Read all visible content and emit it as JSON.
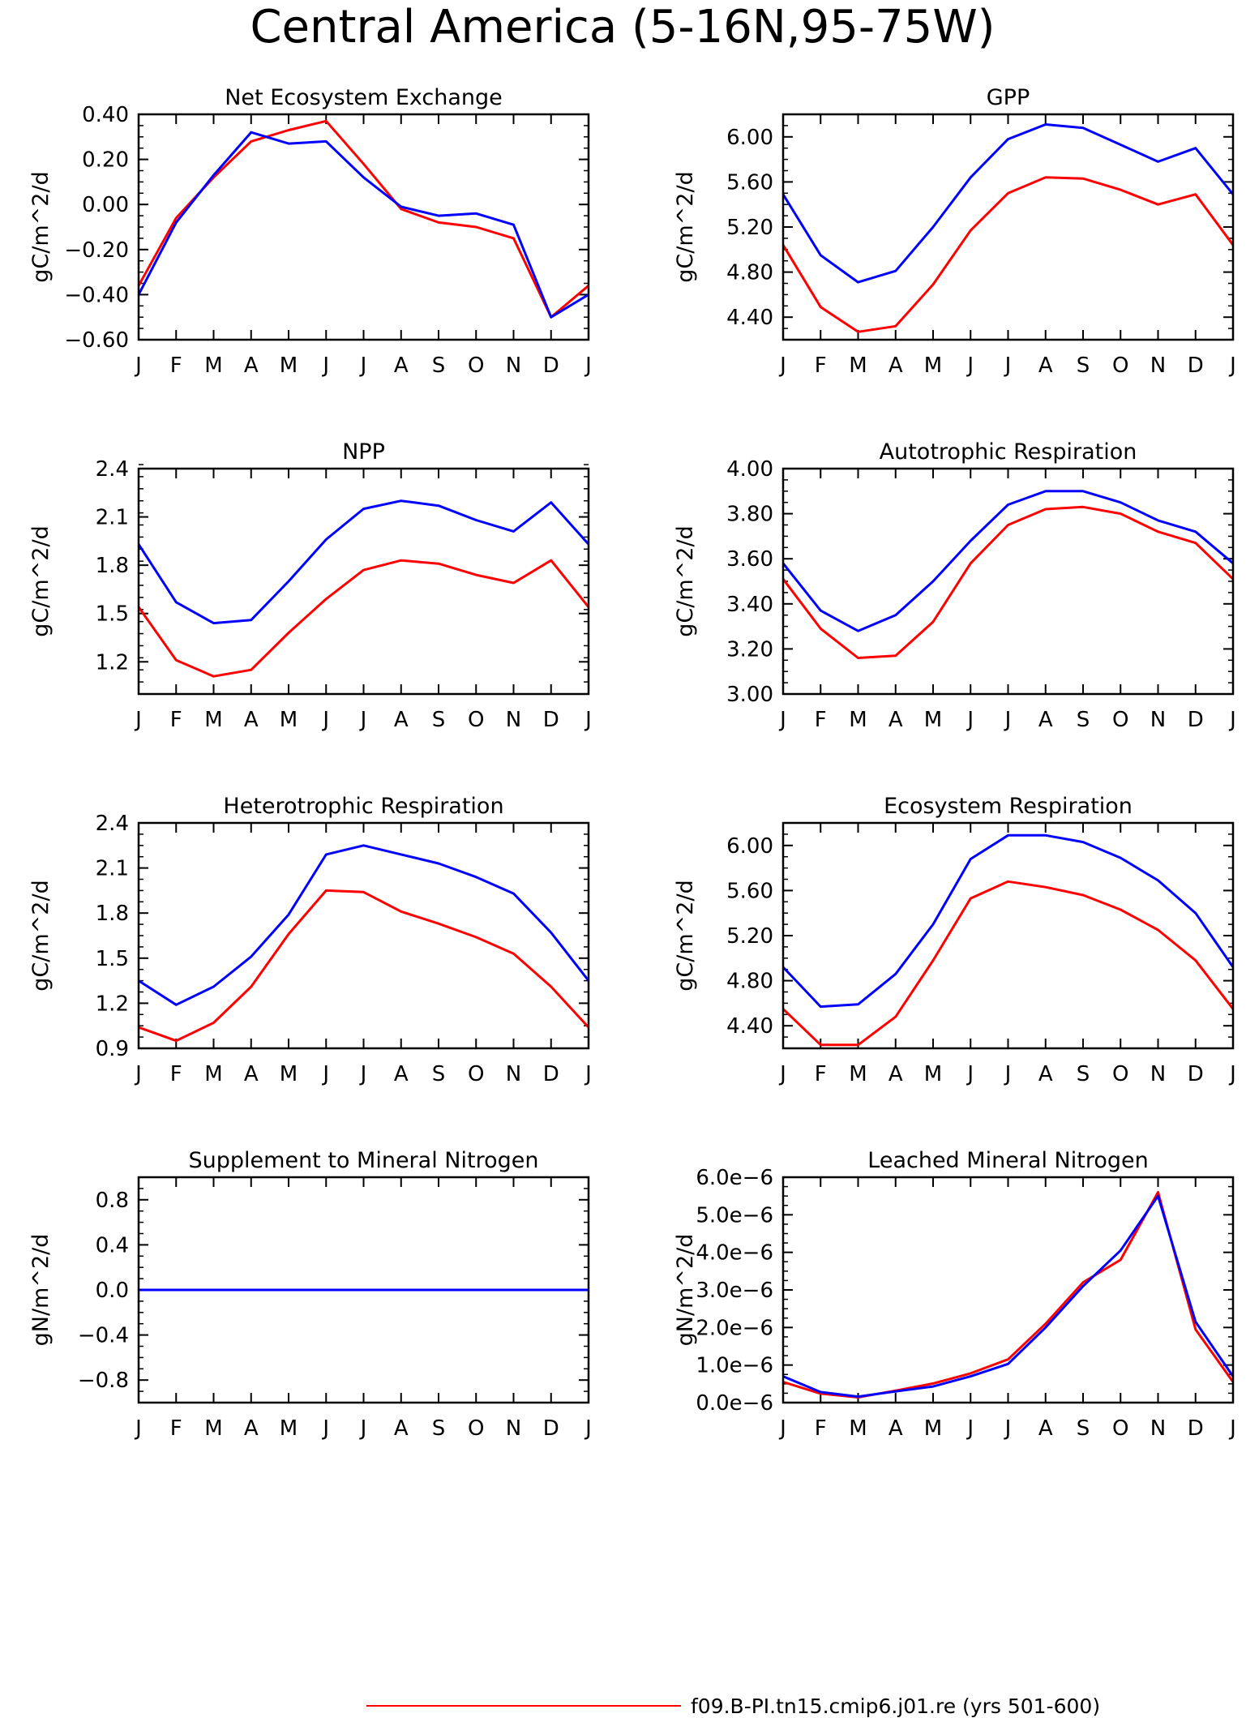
{
  "figure_title": "Central America (5-16N,95-75W)",
  "legend": [
    {
      "label": "f09.B-PI.tn15.cmip6.j01.re (yrs 501-600)",
      "color": "#ff0000"
    }
  ],
  "months": [
    "J",
    "F",
    "M",
    "A",
    "M",
    "J",
    "J",
    "A",
    "S",
    "O",
    "N",
    "D",
    "J"
  ],
  "colors": {
    "red": "#ff0000",
    "blue": "#0000ff"
  },
  "chart_data": [
    {
      "type": "line",
      "title": "Net Ecosystem Exchange",
      "ylabel": "gC/m^2/d",
      "ylim": [
        -0.6,
        0.4
      ],
      "yticks": [
        -0.6,
        -0.4,
        -0.2,
        0.0,
        0.2,
        0.4
      ],
      "yticklabels": [
        "-0.60",
        "-0.40",
        "-0.20",
        "0.00",
        "0.20",
        "0.40"
      ],
      "yminor": 0.05,
      "series": [
        {
          "color": "red",
          "values": [
            -0.36,
            -0.06,
            0.12,
            0.28,
            0.33,
            0.37,
            0.18,
            -0.02,
            -0.08,
            -0.1,
            -0.15,
            -0.5,
            -0.36
          ]
        },
        {
          "color": "blue",
          "values": [
            -0.4,
            -0.08,
            0.13,
            0.32,
            0.27,
            0.28,
            0.12,
            -0.01,
            -0.05,
            -0.04,
            -0.09,
            -0.5,
            -0.4
          ]
        }
      ]
    },
    {
      "type": "line",
      "title": "GPP",
      "ylabel": "gC/m^2/d",
      "ylim": [
        4.2,
        6.2
      ],
      "yticks": [
        4.4,
        4.8,
        5.2,
        5.6,
        6.0
      ],
      "yticklabels": [
        "4.40",
        "4.80",
        "5.20",
        "5.60",
        "6.00"
      ],
      "yminor": 0.1,
      "series": [
        {
          "color": "red",
          "values": [
            5.04,
            4.49,
            4.27,
            4.32,
            4.69,
            5.17,
            5.5,
            5.64,
            5.63,
            5.53,
            5.4,
            5.49,
            5.04
          ]
        },
        {
          "color": "blue",
          "values": [
            5.49,
            4.95,
            4.71,
            4.81,
            5.2,
            5.64,
            5.98,
            6.11,
            6.08,
            5.93,
            5.78,
            5.9,
            5.49
          ]
        }
      ]
    },
    {
      "type": "line",
      "title": "NPP",
      "ylabel": "gC/m^2/d",
      "ylim": [
        1.0,
        2.4
      ],
      "yticks": [
        1.2,
        1.5,
        1.8,
        2.1,
        2.4
      ],
      "yticklabels": [
        "1.2",
        "1.5",
        "1.8",
        "2.1",
        "2.4"
      ],
      "yminor": 0.075,
      "series": [
        {
          "color": "red",
          "values": [
            1.54,
            1.21,
            1.11,
            1.15,
            1.38,
            1.59,
            1.77,
            1.83,
            1.81,
            1.74,
            1.69,
            1.83,
            1.54
          ]
        },
        {
          "color": "blue",
          "values": [
            1.93,
            1.57,
            1.44,
            1.46,
            1.7,
            1.96,
            2.15,
            2.2,
            2.17,
            2.08,
            2.01,
            2.19,
            1.93
          ]
        }
      ]
    },
    {
      "type": "line",
      "title": "Autotrophic Respiration",
      "ylabel": "gC/m^2/d",
      "ylim": [
        3.0,
        4.0
      ],
      "yticks": [
        3.0,
        3.2,
        3.4,
        3.6,
        3.8,
        4.0
      ],
      "yticklabels": [
        "3.00",
        "3.20",
        "3.40",
        "3.60",
        "3.80",
        "4.00"
      ],
      "yminor": 0.05,
      "series": [
        {
          "color": "red",
          "values": [
            3.51,
            3.29,
            3.16,
            3.17,
            3.32,
            3.58,
            3.75,
            3.82,
            3.83,
            3.8,
            3.72,
            3.67,
            3.51
          ]
        },
        {
          "color": "blue",
          "values": [
            3.58,
            3.37,
            3.28,
            3.35,
            3.5,
            3.68,
            3.84,
            3.9,
            3.9,
            3.85,
            3.77,
            3.72,
            3.58
          ]
        }
      ]
    },
    {
      "type": "line",
      "title": "Heterotrophic Respiration",
      "ylabel": "gC/m^2/d",
      "ylim": [
        0.9,
        2.4
      ],
      "yticks": [
        0.9,
        1.2,
        1.5,
        1.8,
        2.1,
        2.4
      ],
      "yticklabels": [
        "0.9",
        "1.2",
        "1.5",
        "1.8",
        "2.1",
        "2.4"
      ],
      "yminor": 0.075,
      "series": [
        {
          "color": "red",
          "values": [
            1.04,
            0.95,
            1.07,
            1.31,
            1.66,
            1.95,
            1.94,
            1.81,
            1.73,
            1.64,
            1.53,
            1.31,
            1.04
          ]
        },
        {
          "color": "blue",
          "values": [
            1.35,
            1.19,
            1.31,
            1.51,
            1.79,
            2.19,
            2.25,
            2.19,
            2.13,
            2.04,
            1.93,
            1.67,
            1.35
          ]
        }
      ]
    },
    {
      "type": "line",
      "title": "Ecosystem Respiration",
      "ylabel": "gC/m^2/d",
      "ylim": [
        4.2,
        6.2
      ],
      "yticks": [
        4.4,
        4.8,
        5.2,
        5.6,
        6.0
      ],
      "yticklabels": [
        "4.40",
        "4.80",
        "5.20",
        "5.60",
        "6.00"
      ],
      "yminor": 0.1,
      "series": [
        {
          "color": "red",
          "values": [
            4.55,
            4.23,
            4.23,
            4.48,
            4.98,
            5.53,
            5.68,
            5.63,
            5.56,
            5.43,
            5.25,
            4.98,
            4.55
          ]
        },
        {
          "color": "blue",
          "values": [
            4.92,
            4.57,
            4.59,
            4.86,
            5.3,
            5.88,
            6.09,
            6.09,
            6.03,
            5.89,
            5.69,
            5.4,
            4.92
          ]
        }
      ]
    },
    {
      "type": "line",
      "title": "Supplement to Mineral Nitrogen",
      "ylabel": "gN/m^2/d",
      "ylim": [
        -1.0,
        1.0
      ],
      "yticks": [
        -0.8,
        -0.4,
        0.0,
        0.4,
        0.8
      ],
      "yticklabels": [
        "-0.8",
        "-0.4",
        "0.0",
        "0.4",
        "0.8"
      ],
      "yminor": 0.1,
      "series": [
        {
          "color": "red",
          "values": [
            0,
            0,
            0,
            0,
            0,
            0,
            0,
            0,
            0,
            0,
            0,
            0,
            0
          ]
        },
        {
          "color": "blue",
          "values": [
            0,
            0,
            0,
            0,
            0,
            0,
            0,
            0,
            0,
            0,
            0,
            0,
            0
          ]
        }
      ]
    },
    {
      "type": "line",
      "title": "Leached Mineral Nitrogen",
      "ylabel": "gN/m^2/d",
      "ylim": [
        0.0,
        6e-06
      ],
      "yticks": [
        0.0,
        1e-06,
        2e-06,
        3e-06,
        4e-06,
        5e-06,
        6e-06
      ],
      "yticklabels": [
        "0.0e-6",
        "1.0e-6",
        "2.0e-6",
        "3.0e-6",
        "4.0e-6",
        "5.0e-6",
        "6.0e-6"
      ],
      "yminor": 2.5e-07,
      "series": [
        {
          "color": "red",
          "values": [
            5.5e-07,
            2.4e-07,
            1.4e-07,
            3.2e-07,
            5.1e-07,
            7.8e-07,
            1.15e-06,
            2.1e-06,
            3.2e-06,
            3.8e-06,
            5.6e-06,
            1.95e-06,
            5.5e-07
          ]
        },
        {
          "color": "blue",
          "values": [
            7e-07,
            2.8e-07,
            1.6e-07,
            3e-07,
            4.3e-07,
            7e-07,
            1.03e-06,
            2e-06,
            3.1e-06,
            4.05e-06,
            5.5e-06,
            2.15e-06,
            7e-07
          ]
        }
      ]
    }
  ]
}
